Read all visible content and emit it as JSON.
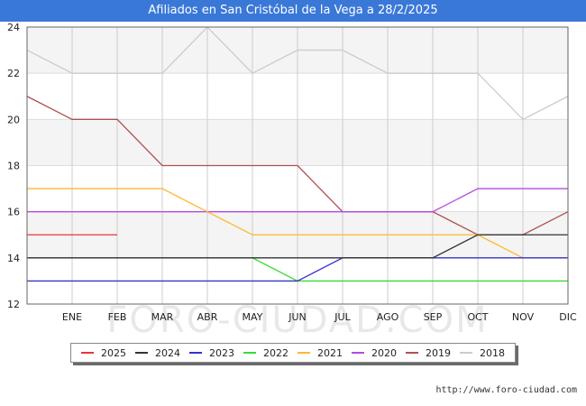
{
  "chart_data": {
    "type": "line",
    "title": "Afiliados en San Cristóbal de la Vega a 28/2/2025",
    "categories": [
      "",
      "ENE",
      "FEB",
      "MAR",
      "ABR",
      "MAY",
      "JUN",
      "JUL",
      "AGO",
      "SEP",
      "OCT",
      "NOV",
      "DIC"
    ],
    "ylim": [
      12,
      24
    ],
    "yticks": [
      12,
      14,
      16,
      18,
      20,
      22,
      24
    ],
    "grid": true,
    "legend_position": "bottom",
    "series": [
      {
        "name": "2025",
        "color": "#ee3333",
        "values": [
          15,
          15,
          15,
          null,
          null,
          null,
          null,
          null,
          null,
          null,
          null,
          null,
          null
        ]
      },
      {
        "name": "2024",
        "color": "#333333",
        "values": [
          14,
          14,
          14,
          14,
          14,
          14,
          14,
          14,
          14,
          14,
          15,
          15,
          15
        ]
      },
      {
        "name": "2023",
        "color": "#3333cc",
        "values": [
          13,
          13,
          13,
          13,
          13,
          13,
          13,
          14,
          14,
          14,
          14,
          14,
          14
        ]
      },
      {
        "name": "2022",
        "color": "#33dd33",
        "values": [
          14,
          14,
          14,
          14,
          14,
          14,
          13,
          13,
          13,
          13,
          13,
          13,
          13
        ]
      },
      {
        "name": "2021",
        "color": "#ffb732",
        "values": [
          17,
          17,
          17,
          17,
          16,
          15,
          15,
          15,
          15,
          15,
          15,
          14,
          14
        ]
      },
      {
        "name": "2020",
        "color": "#b44be0",
        "values": [
          16,
          16,
          16,
          16,
          16,
          16,
          16,
          16,
          16,
          16,
          17,
          17,
          17
        ]
      },
      {
        "name": "2019",
        "color": "#b05050",
        "values": [
          21,
          20,
          20,
          18,
          18,
          18,
          18,
          16,
          16,
          16,
          15,
          15,
          16
        ]
      },
      {
        "name": "2018",
        "color": "#cccccc",
        "values": [
          23,
          22,
          22,
          22,
          24,
          22,
          23,
          23,
          22,
          22,
          22,
          20,
          21
        ]
      }
    ]
  },
  "watermark": "FORO-CIUDAD.COM",
  "footer": {
    "url": "http://www.foro-ciudad.com"
  }
}
